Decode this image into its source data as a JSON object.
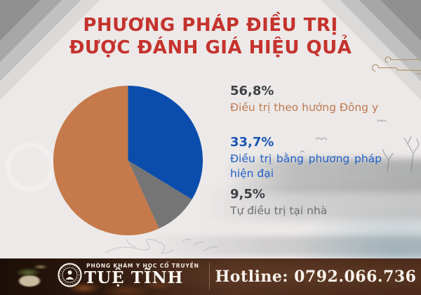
{
  "title": {
    "line1": "PHƯƠNG PHÁP ĐIỀU TRỊ",
    "line2": "ĐƯỢC ĐÁNH GIÁ HIỆU QUẢ",
    "color": "#c5322d"
  },
  "chart_data": {
    "type": "pie",
    "title": "PHƯƠNG PHÁP ĐIỀU TRỊ ĐƯỢC ĐÁNH GIÁ HIỆU QUẢ",
    "legend_position": "right",
    "start_angle_deg": 0,
    "clockwise_slice_order": [
      1,
      2,
      0
    ],
    "segments": [
      {
        "label": "Điều trị theo hướng Đông y",
        "value": 56.8,
        "value_text": "56,8%",
        "color": "#c6794a",
        "label_color": "#bf7950",
        "value_color": "#3d4046"
      },
      {
        "label": "Điều trị bằng phương pháp hiện đại",
        "value": 33.7,
        "value_text": "33,7%",
        "color": "#0b4dad",
        "label_color": "#2160c6",
        "value_color": "#1c56b4"
      },
      {
        "label": "Tự điều trị tại nhà",
        "value": 9.5,
        "value_text": "9,5%",
        "color": "#757575",
        "label_color": "#6f6f6f",
        "value_color": "#3d4046"
      }
    ]
  },
  "footer": {
    "clinic_type": "PHÒNG KHÁM Y HỌC CỔ TRUYỀN",
    "clinic_name": "TUỆ TĨNH",
    "hotline": "Hotline: 0792.066.736",
    "bar_color": "#4b2a1a",
    "text_color": "#f5f1ea"
  },
  "decorations": {
    "cloud_icon": "chinese-cloud-lines",
    "corner_icon": "diagonal-gray-bands",
    "ink_wash_icon": "ink-painting-wash",
    "seal_icon": "physician-portrait-seal"
  },
  "background_color": "#ece9e8"
}
